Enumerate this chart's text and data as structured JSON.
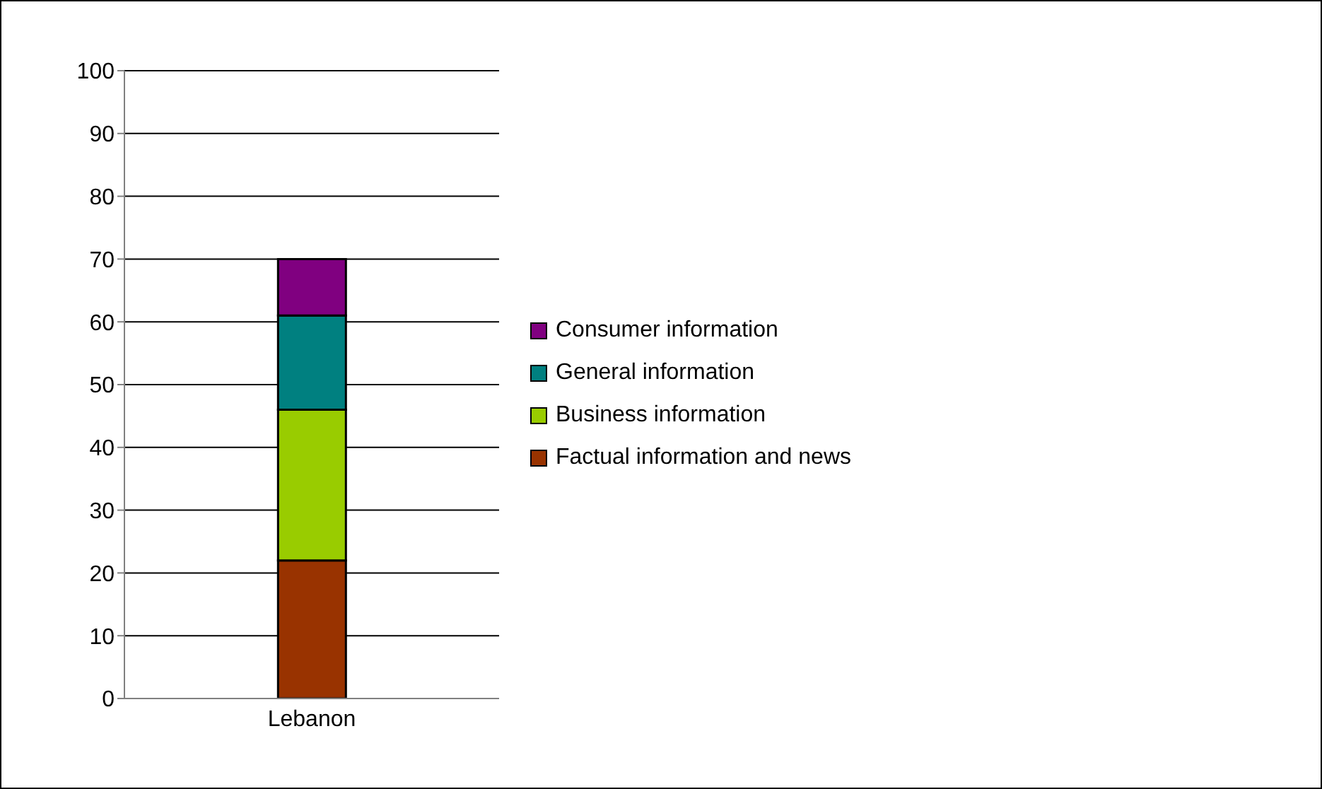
{
  "chart_data": {
    "type": "bar",
    "stacked": true,
    "categories": [
      "Lebanon"
    ],
    "series": [
      {
        "name": "Factual information and news",
        "color": "#993300",
        "values": [
          22
        ]
      },
      {
        "name": "Business information",
        "color": "#99cc00",
        "values": [
          24
        ]
      },
      {
        "name": "General information",
        "color": "#008080",
        "values": [
          15
        ]
      },
      {
        "name": "Consumer information",
        "color": "#800080",
        "values": [
          9
        ]
      }
    ],
    "ylim": [
      0,
      100
    ],
    "yticks": [
      0,
      10,
      20,
      30,
      40,
      50,
      60,
      70,
      80,
      90,
      100
    ],
    "grid": "y",
    "legend": "right"
  }
}
